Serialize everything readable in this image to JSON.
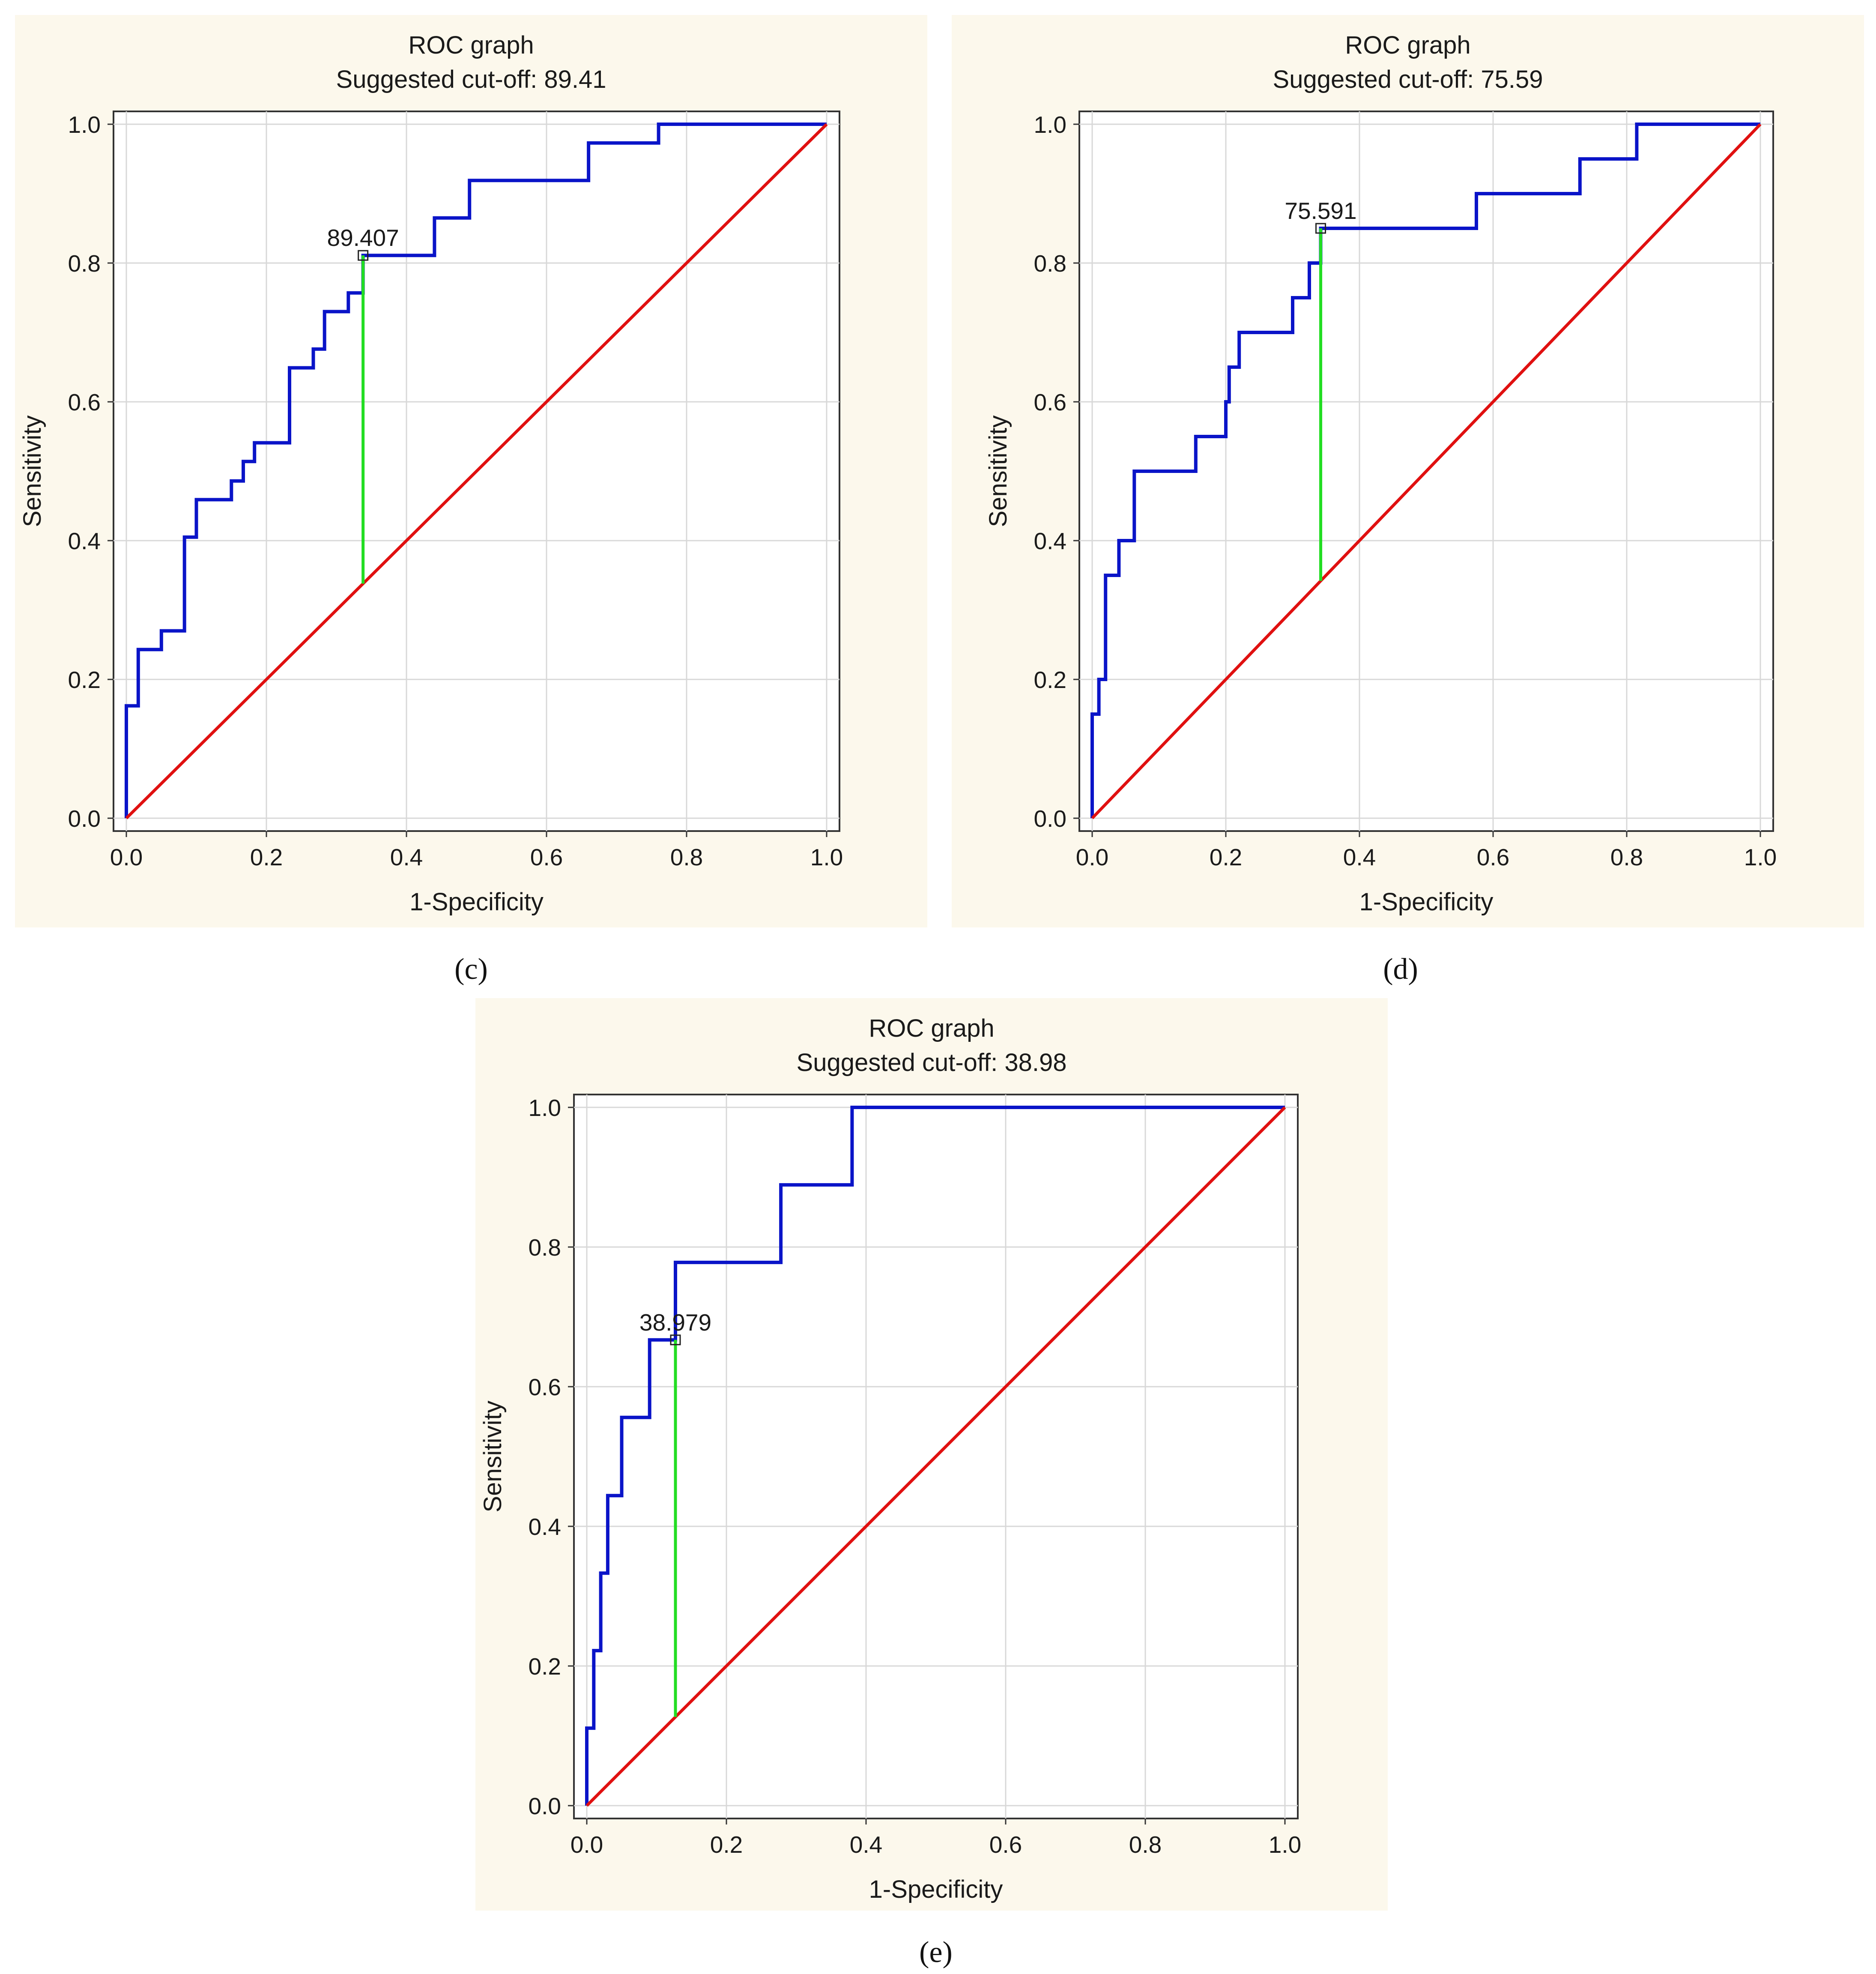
{
  "chart_data": [
    {
      "type": "line",
      "panel": "c",
      "title": "ROC graph",
      "subtitle": "Suggested cut-off: 89.41",
      "xlabel": "1-Specificity",
      "ylabel": "Sensitivity",
      "xlim": [
        0,
        1
      ],
      "ylim": [
        0,
        1
      ],
      "xticks": [
        "0.0",
        "0.2",
        "0.4",
        "0.6",
        "0.8",
        "1.0"
      ],
      "yticks": [
        "0.0",
        "0.2",
        "0.4",
        "0.6",
        "0.8",
        "1.0"
      ],
      "grid": true,
      "cutoff": {
        "label": "89.407",
        "x": 0.338,
        "y": 0.811
      },
      "series": [
        {
          "name": "ROC curve",
          "color": "#0a14c8",
          "x": [
            0,
            0,
            0.017,
            0.017,
            0.05,
            0.05,
            0.083,
            0.083,
            0.1,
            0.1,
            0.15,
            0.15,
            0.167,
            0.167,
            0.183,
            0.183,
            0.233,
            0.233,
            0.267,
            0.267,
            0.283,
            0.283,
            0.317,
            0.317,
            0.333,
            0.333,
            0.338,
            0.338,
            0.44,
            0.44,
            0.49,
            0.49,
            0.66,
            0.66,
            0.76,
            0.76,
            1.0
          ],
          "y": [
            0,
            0.162,
            0.162,
            0.243,
            0.243,
            0.27,
            0.27,
            0.405,
            0.405,
            0.459,
            0.459,
            0.486,
            0.486,
            0.514,
            0.514,
            0.541,
            0.541,
            0.649,
            0.649,
            0.676,
            0.676,
            0.73,
            0.73,
            0.757,
            0.757,
            0.757,
            0.757,
            0.811,
            0.811,
            0.865,
            0.865,
            0.919,
            0.919,
            0.973,
            0.973,
            1.0,
            1.0
          ]
        },
        {
          "name": "Reference",
          "color": "#e01010",
          "x": [
            0,
            1
          ],
          "y": [
            0,
            1
          ]
        }
      ]
    },
    {
      "type": "line",
      "panel": "d",
      "title": "ROC graph",
      "subtitle": "Suggested cut-off: 75.59",
      "xlabel": "1-Specificity",
      "ylabel": "Sensitivity",
      "xlim": [
        0,
        1
      ],
      "ylim": [
        0,
        1
      ],
      "xticks": [
        "0.0",
        "0.2",
        "0.4",
        "0.6",
        "0.8",
        "1.0"
      ],
      "yticks": [
        "0.0",
        "0.2",
        "0.4",
        "0.6",
        "0.8",
        "1.0"
      ],
      "grid": true,
      "cutoff": {
        "label": "75.591",
        "x": 0.342,
        "y": 0.85
      },
      "series": [
        {
          "name": "ROC curve",
          "color": "#0a14c8",
          "x": [
            0,
            0,
            0.01,
            0.01,
            0.02,
            0.02,
            0.04,
            0.04,
            0.063,
            0.063,
            0.087,
            0.087,
            0.155,
            0.155,
            0.2,
            0.2,
            0.205,
            0.205,
            0.22,
            0.22,
            0.3,
            0.3,
            0.325,
            0.325,
            0.335,
            0.335,
            0.342,
            0.342,
            0.575,
            0.575,
            0.73,
            0.73,
            0.815,
            0.815,
            1.0
          ],
          "y": [
            0,
            0.15,
            0.15,
            0.2,
            0.2,
            0.35,
            0.35,
            0.4,
            0.4,
            0.5,
            0.5,
            0.5,
            0.5,
            0.55,
            0.55,
            0.6,
            0.6,
            0.65,
            0.65,
            0.7,
            0.7,
            0.75,
            0.75,
            0.8,
            0.8,
            0.8,
            0.8,
            0.85,
            0.85,
            0.9,
            0.9,
            0.95,
            0.95,
            1.0,
            1.0
          ]
        },
        {
          "name": "Reference",
          "color": "#e01010",
          "x": [
            0,
            1
          ],
          "y": [
            0,
            1
          ]
        }
      ]
    },
    {
      "type": "line",
      "panel": "e",
      "title": "ROC graph",
      "subtitle": "Suggested cut-off: 38.98",
      "xlabel": "1-Specificity",
      "ylabel": "Sensitivity",
      "xlim": [
        0,
        1
      ],
      "ylim": [
        0,
        1
      ],
      "xticks": [
        "0.0",
        "0.2",
        "0.4",
        "0.6",
        "0.8",
        "1.0"
      ],
      "yticks": [
        "0.0",
        "0.2",
        "0.4",
        "0.6",
        "0.8",
        "1.0"
      ],
      "grid": true,
      "cutoff": {
        "label": "38.979",
        "x": 0.127,
        "y": 0.667
      },
      "series": [
        {
          "name": "ROC curve",
          "color": "#0a14c8",
          "x": [
            0,
            0,
            0.01,
            0.01,
            0.02,
            0.02,
            0.03,
            0.03,
            0.05,
            0.05,
            0.09,
            0.09,
            0.127,
            0.127,
            0.278,
            0.278,
            0.38,
            0.38,
            0.608,
            0.608,
            1.0
          ],
          "y": [
            0,
            0.111,
            0.111,
            0.222,
            0.222,
            0.333,
            0.333,
            0.444,
            0.444,
            0.556,
            0.556,
            0.667,
            0.667,
            0.778,
            0.778,
            0.889,
            0.889,
            1.0,
            1.0,
            1.0,
            1.0
          ]
        },
        {
          "name": "Reference",
          "color": "#e01010",
          "x": [
            0,
            1
          ],
          "y": [
            0,
            1
          ]
        }
      ]
    }
  ],
  "captions": {
    "c": "(c)",
    "d": "(d)",
    "e": "(e)"
  },
  "colors": {
    "panel_bg": "#fcf8ec",
    "plot_bg": "#ffffff",
    "grid": "#d8d8d8",
    "cutoff_line": "#22dd22"
  }
}
